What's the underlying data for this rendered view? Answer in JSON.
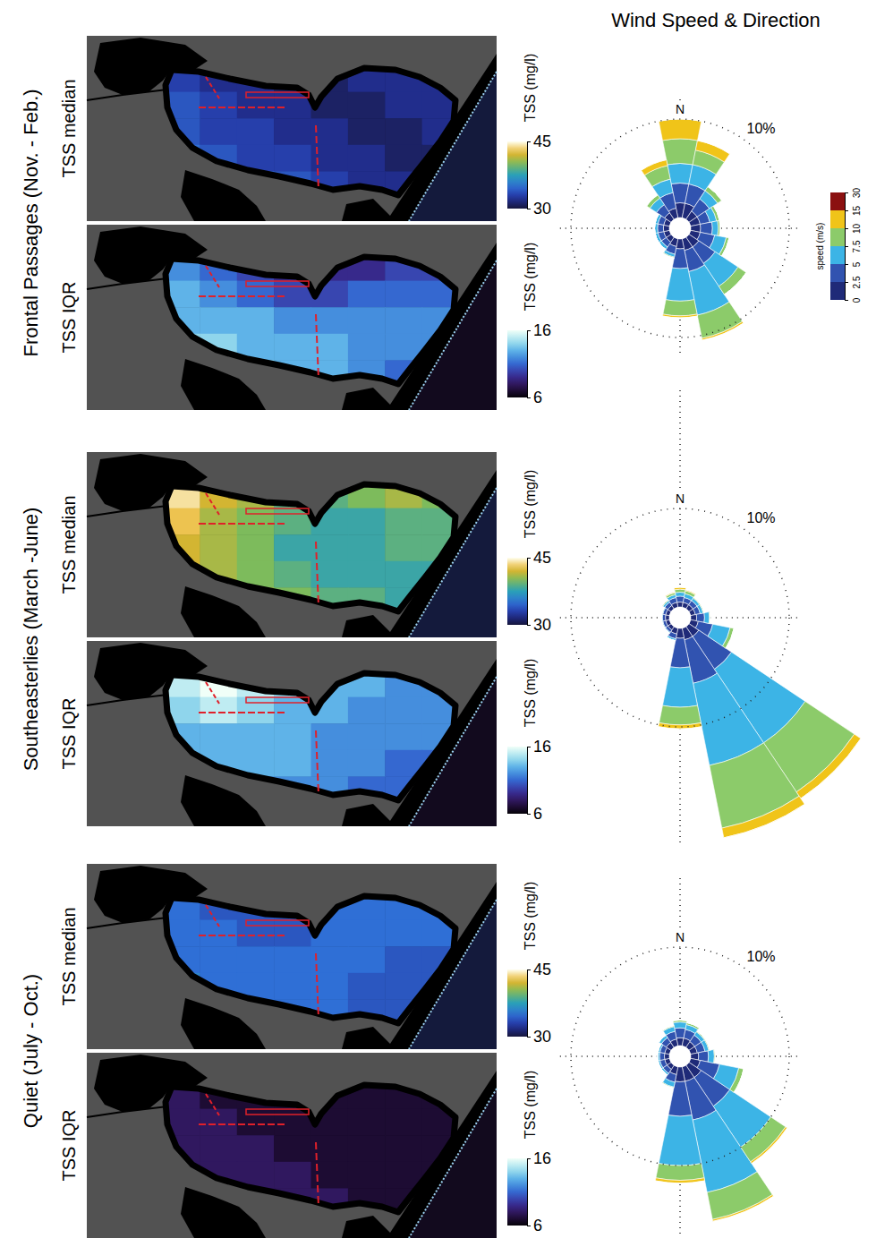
{
  "figure": {
    "title": "Wind Speed & Direction",
    "rows": [
      "Frontal Passages (Nov. - Feb.)",
      "Southeasterlies (March -June)",
      "Quiet (July - Oct.)"
    ]
  },
  "chart_data": [
    {
      "type": "heatmap",
      "title": "TSS median",
      "tick_labels": false,
      "cells": [
        [
          33,
          32,
          32,
          31,
          31,
          32,
          32,
          32
        ],
        [
          34,
          33,
          32,
          32,
          31,
          31,
          32,
          32
        ],
        [
          34,
          33,
          33,
          32,
          32,
          31,
          31,
          32
        ],
        [
          35,
          34,
          33,
          33,
          32,
          32,
          31,
          31
        ],
        [
          36,
          37,
          35,
          34,
          33,
          32,
          32,
          31
        ]
      ],
      "colorbar": {
        "label": "TSS (mg/l)",
        "range": [
          30,
          45
        ],
        "ticks": [
          45,
          30
        ]
      }
    },
    {
      "type": "heatmap",
      "title": "TSS IQR",
      "tick_labels": false,
      "cells": [
        [
          12,
          11,
          10,
          9,
          9,
          9,
          10,
          10
        ],
        [
          13,
          12,
          11,
          10,
          10,
          11,
          11,
          11
        ],
        [
          13,
          13,
          13,
          12,
          12,
          12,
          12,
          12
        ],
        [
          14,
          14,
          13,
          13,
          13,
          12,
          12,
          12
        ],
        [
          13,
          14,
          14,
          13,
          13,
          12,
          11,
          11
        ]
      ],
      "colorbar": {
        "label": "TSS (mg/l)",
        "range": [
          6,
          16
        ],
        "ticks": [
          16,
          6
        ]
      }
    },
    {
      "type": "windrose",
      "stacked": true,
      "categories": [
        "N",
        null,
        null,
        null,
        null,
        null,
        null,
        null,
        null,
        null,
        null,
        null,
        null,
        null,
        null,
        null
      ],
      "ylim": [
        0,
        12
      ],
      "yticks": [
        {
          "value": 10,
          "label": "10%"
        }
      ],
      "series": [
        {
          "color": "#1f2a78",
          "values": [
            1.5,
            1.5,
            1.0,
            1.0,
            1.0,
            1.0,
            1.2,
            1.2,
            1.0,
            0.8,
            0.6,
            0.6,
            0.6,
            0.6,
            0.8,
            1.0
          ]
        },
        {
          "color": "#3153b0",
          "values": [
            2.0,
            2.0,
            1.5,
            1.0,
            1.2,
            1.5,
            2.0,
            2.2,
            2.0,
            0.8,
            0.6,
            0.6,
            0.6,
            0.6,
            1.0,
            1.6
          ]
        },
        {
          "color": "#3cb4e6",
          "values": [
            2.0,
            2.0,
            1.0,
            0.7,
            0.6,
            1.2,
            2.8,
            4.5,
            3.3,
            0.3,
            0.3,
            0.3,
            0.3,
            0.3,
            0.8,
            1.4
          ]
        },
        {
          "color": "#8ccb6a",
          "values": [
            2.5,
            1.5,
            0.5,
            0.3,
            0.2,
            0.3,
            1.0,
            2.4,
            1.5,
            0.1,
            0,
            0,
            0,
            0,
            0.4,
            1.4
          ]
        },
        {
          "color": "#f0c419",
          "values": [
            2.0,
            1.0,
            0,
            0,
            0,
            0,
            0,
            0.2,
            0.2,
            0,
            0,
            0,
            0,
            0,
            0,
            0.6
          ]
        },
        {
          "color": "#8b1010",
          "values": [
            0,
            0,
            0,
            0,
            0,
            0,
            0,
            0,
            0,
            0,
            0,
            0,
            0,
            0,
            0,
            0
          ]
        }
      ],
      "colorbar": {
        "label": "speed (m/s)",
        "ticks": [
          0,
          2.5,
          5,
          7.5,
          10,
          15,
          30
        ]
      }
    },
    {
      "type": "heatmap",
      "title": "TSS median",
      "tick_labels": false,
      "cells": [
        [
          44,
          42,
          41,
          39,
          39,
          40,
          41,
          40
        ],
        [
          43,
          41,
          40,
          39,
          38,
          38,
          39,
          39
        ],
        [
          42,
          41,
          40,
          38,
          38,
          38,
          39,
          39
        ],
        [
          42,
          41,
          40,
          39,
          38,
          38,
          38,
          38
        ],
        [
          42,
          42,
          41,
          40,
          39,
          39,
          38,
          38
        ]
      ],
      "colorbar": {
        "label": "TSS (mg/l)",
        "range": [
          30,
          45
        ],
        "ticks": [
          45,
          30
        ]
      }
    },
    {
      "type": "heatmap",
      "title": "TSS IQR",
      "tick_labels": false,
      "cells": [
        [
          15,
          16,
          15,
          14,
          13,
          13,
          12,
          12
        ],
        [
          14,
          15,
          14,
          13,
          13,
          12,
          12,
          12
        ],
        [
          13,
          13,
          13,
          13,
          12,
          12,
          12,
          12
        ],
        [
          13,
          13,
          13,
          13,
          12,
          12,
          11,
          11
        ],
        [
          12,
          12,
          12,
          12,
          12,
          11,
          11,
          11
        ]
      ],
      "colorbar": {
        "label": "TSS (mg/l)",
        "range": [
          6,
          16
        ],
        "ticks": [
          16,
          6
        ]
      }
    },
    {
      "type": "windrose",
      "stacked": true,
      "categories": [
        "N",
        null,
        null,
        null,
        null,
        null,
        null,
        null,
        null,
        null,
        null,
        null,
        null,
        null,
        null,
        null
      ],
      "ylim": [
        0,
        22
      ],
      "yticks": [
        {
          "value": 10,
          "label": "10%"
        }
      ],
      "series": [
        {
          "color": "#1f2a78",
          "values": [
            0.5,
            0.5,
            0.5,
            0.5,
            0.6,
            0.8,
            1.2,
            1.2,
            1.0,
            0.6,
            0.4,
            0.4,
            0.4,
            0.4,
            0.4,
            0.5
          ]
        },
        {
          "color": "#3153b0",
          "values": [
            0.6,
            0.5,
            0.5,
            0.5,
            0.8,
            1.5,
            4.0,
            4.5,
            3.0,
            0.5,
            0.3,
            0.3,
            0.3,
            0.3,
            0.4,
            0.5
          ]
        },
        {
          "color": "#3cb4e6",
          "values": [
            0.4,
            0.4,
            0.3,
            0.3,
            0.5,
            1.8,
            9.0,
            8.5,
            4.0,
            0.2,
            0.1,
            0.1,
            0.1,
            0.1,
            0.2,
            0.3
          ]
        },
        {
          "color": "#8ccb6a",
          "values": [
            0.3,
            0.3,
            0.1,
            0.1,
            0.1,
            0.4,
            6.0,
            6.5,
            1.8,
            0,
            0,
            0,
            0,
            0,
            0.1,
            0.2
          ]
        },
        {
          "color": "#f0c419",
          "values": [
            0.2,
            0.1,
            0,
            0,
            0,
            0,
            0.8,
            1.0,
            0.4,
            0,
            0,
            0,
            0,
            0,
            0,
            0.1
          ]
        },
        {
          "color": "#8b1010",
          "values": [
            0,
            0,
            0,
            0,
            0,
            0,
            0,
            0,
            0,
            0,
            0,
            0,
            0,
            0,
            0,
            0
          ]
        }
      ]
    },
    {
      "type": "heatmap",
      "title": "TSS median",
      "tick_labels": false,
      "cells": [
        [
          35,
          34,
          34,
          34,
          35,
          35,
          35,
          35
        ],
        [
          35,
          35,
          34,
          34,
          35,
          35,
          35,
          35
        ],
        [
          35,
          35,
          35,
          35,
          35,
          35,
          34,
          34
        ],
        [
          36,
          35,
          35,
          35,
          35,
          34,
          34,
          34
        ],
        [
          36,
          36,
          35,
          35,
          35,
          34,
          34,
          34
        ]
      ],
      "colorbar": {
        "label": "TSS (mg/l)",
        "range": [
          30,
          45
        ],
        "ticks": [
          45,
          30
        ]
      }
    },
    {
      "type": "heatmap",
      "title": "TSS IQR",
      "tick_labels": false,
      "cells": [
        [
          8,
          7,
          7,
          7,
          7,
          7,
          7,
          7
        ],
        [
          8,
          8,
          7,
          7,
          7,
          7,
          7,
          7
        ],
        [
          8,
          8,
          8,
          7,
          7,
          7,
          7,
          7
        ],
        [
          8,
          8,
          8,
          8,
          7,
          7,
          7,
          7
        ],
        [
          8,
          8,
          8,
          8,
          8,
          7,
          7,
          7
        ]
      ],
      "colorbar": {
        "label": "TSS (mg/l)",
        "range": [
          6,
          16
        ],
        "ticks": [
          16,
          6
        ]
      }
    },
    {
      "type": "windrose",
      "stacked": true,
      "categories": [
        "N",
        null,
        null,
        null,
        null,
        null,
        null,
        null,
        null,
        null,
        null,
        null,
        null,
        null,
        null,
        null
      ],
      "ylim": [
        0,
        17
      ],
      "yticks": [
        {
          "value": 10,
          "label": "10%"
        }
      ],
      "series": [
        {
          "color": "#1f2a78",
          "values": [
            0.8,
            0.8,
            0.7,
            0.7,
            0.8,
            1.0,
            1.5,
            1.5,
            1.5,
            0.8,
            0.5,
            0.5,
            0.5,
            0.5,
            0.6,
            0.7
          ]
        },
        {
          "color": "#3153b0",
          "values": [
            1.0,
            0.9,
            0.8,
            0.8,
            1.0,
            2.0,
            3.5,
            4.0,
            3.5,
            0.8,
            0.5,
            0.5,
            0.5,
            0.5,
            0.6,
            0.8
          ]
        },
        {
          "color": "#3cb4e6",
          "values": [
            0.6,
            0.5,
            0.4,
            0.4,
            0.6,
            2.0,
            5.0,
            7.5,
            5.0,
            0.5,
            0.2,
            0.2,
            0.2,
            0.2,
            0.3,
            0.5
          ]
        },
        {
          "color": "#8ccb6a",
          "values": [
            0.2,
            0.2,
            0.1,
            0.1,
            0.1,
            0.5,
            1.8,
            2.8,
            1.5,
            0.1,
            0,
            0,
            0,
            0,
            0,
            0.1
          ]
        },
        {
          "color": "#f0c419",
          "values": [
            0,
            0,
            0,
            0,
            0,
            0,
            0.2,
            0.2,
            0.3,
            0,
            0,
            0,
            0,
            0,
            0,
            0
          ]
        },
        {
          "color": "#8b1010",
          "values": [
            0,
            0,
            0,
            0,
            0,
            0,
            0,
            0,
            0,
            0,
            0,
            0,
            0,
            0,
            0,
            0
          ]
        }
      ]
    }
  ]
}
